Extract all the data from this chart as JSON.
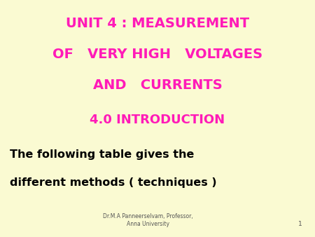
{
  "background_color": "#fafad2",
  "title_line1": "UNIT 4 : MEASUREMENT",
  "title_line2": "OF   VERY HIGH   VOLTAGES",
  "title_line3": "AND   CURRENTS",
  "subtitle": "4.0 INTRODUCTION",
  "body_line1": "The following table gives the",
  "body_line2": "different methods ( techniques )",
  "footer_text": "Dr.M.A Panneerselvam, Professor,\nAnna University",
  "page_number": "1",
  "title_color": "#ff1ab8",
  "subtitle_color": "#ff1ab8",
  "body_color": "#000000",
  "footer_color": "#555555",
  "title_fontsize": 14,
  "subtitle_fontsize": 13,
  "body_fontsize": 11.5,
  "footer_fontsize": 5.5
}
